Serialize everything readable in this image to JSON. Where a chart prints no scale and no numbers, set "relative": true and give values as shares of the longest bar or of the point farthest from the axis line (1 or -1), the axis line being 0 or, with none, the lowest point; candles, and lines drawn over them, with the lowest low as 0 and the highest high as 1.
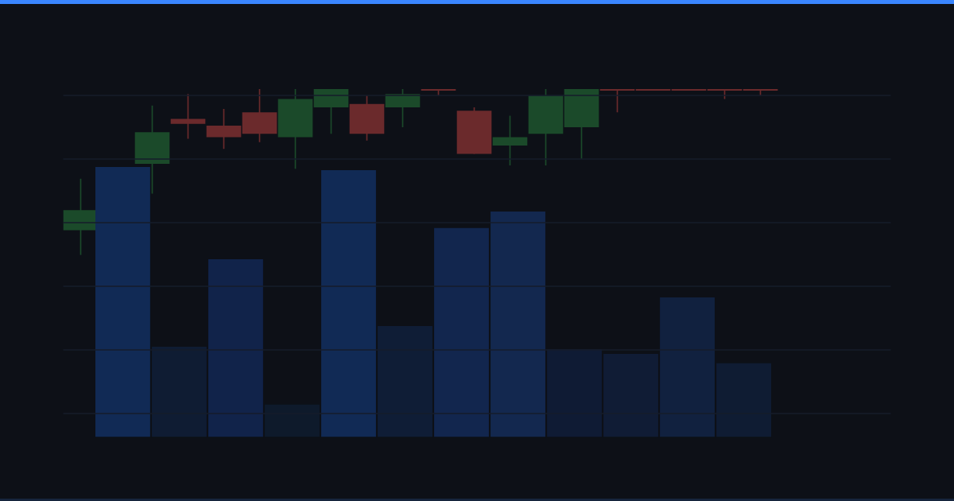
{
  "chart_data": [
    {
      "type": "candlestick",
      "relative": true,
      "grid": "y",
      "categories": [
        null,
        null,
        null,
        null,
        null,
        null,
        null,
        null,
        null,
        null,
        null,
        null,
        null,
        null,
        null,
        null,
        null,
        null,
        null,
        null
      ],
      "ohlc": [
        [
          0.15,
          0.46,
          0,
          0.27
        ],
        null,
        [
          0.55,
          0.9,
          0.37,
          0.74
        ],
        [
          0.82,
          0.97,
          0.7,
          0.79
        ],
        [
          0.78,
          0.88,
          0.64,
          0.71
        ],
        [
          0.86,
          1,
          0.68,
          0.73
        ],
        [
          0.71,
          1,
          0.52,
          0.94
        ],
        [
          0.89,
          1,
          0.73,
          1
        ],
        [
          0.91,
          0.96,
          0.69,
          0.73
        ],
        [
          0.89,
          1,
          0.77,
          0.97
        ],
        [
          1,
          1,
          0.96,
          0.99
        ],
        [
          0.87,
          0.89,
          0.61,
          0.61
        ],
        [
          0.66,
          0.84,
          0.54,
          0.71
        ],
        [
          0.73,
          1,
          0.54,
          0.96
        ],
        [
          0.77,
          1,
          0.58,
          1
        ],
        [
          1,
          1,
          0.86,
          0.99
        ],
        [
          1,
          1,
          0.99,
          0.99
        ],
        [
          1,
          1,
          0.99,
          0.99
        ],
        [
          1,
          1,
          0.94,
          0.99
        ],
        [
          1,
          1,
          0.96,
          0.99
        ]
      ],
      "colors": [
        "#1b4a2a",
        "#6b2a2c",
        "#1b4a2a",
        "#6b2a2c",
        "#6b2a2c",
        "#6b2a2c",
        "#1b4a2a",
        "#1b4a2a",
        "#6b2a2c",
        "#1b4a2a",
        "#6b2a2c",
        "#6b2a2c",
        "#1b4a2a",
        "#1b4a2a",
        "#1b4a2a",
        "#6b2a2c",
        "#6b2a2c",
        "#6b2a2c",
        "#6b2a2c",
        "#6b2a2c"
      ]
    },
    {
      "type": "bar",
      "relative": true,
      "categories": [
        null,
        null,
        null,
        null,
        null,
        null,
        null,
        null,
        null,
        null,
        null,
        null
      ],
      "values": [
        1,
        0.335,
        0.659,
        0.121,
        0.988,
        0.412,
        0.774,
        0.835,
        0.326,
        0.309,
        0.518,
        0.274
      ],
      "colors": [
        "#112a55",
        "#0f1c33",
        "#11234a",
        "#0e1a2b",
        "#112a55",
        "#0f1d36",
        "#12264e",
        "#13284f",
        "#0f1b34",
        "#101c35",
        "#11213f",
        "#0f1c33"
      ]
    }
  ]
}
